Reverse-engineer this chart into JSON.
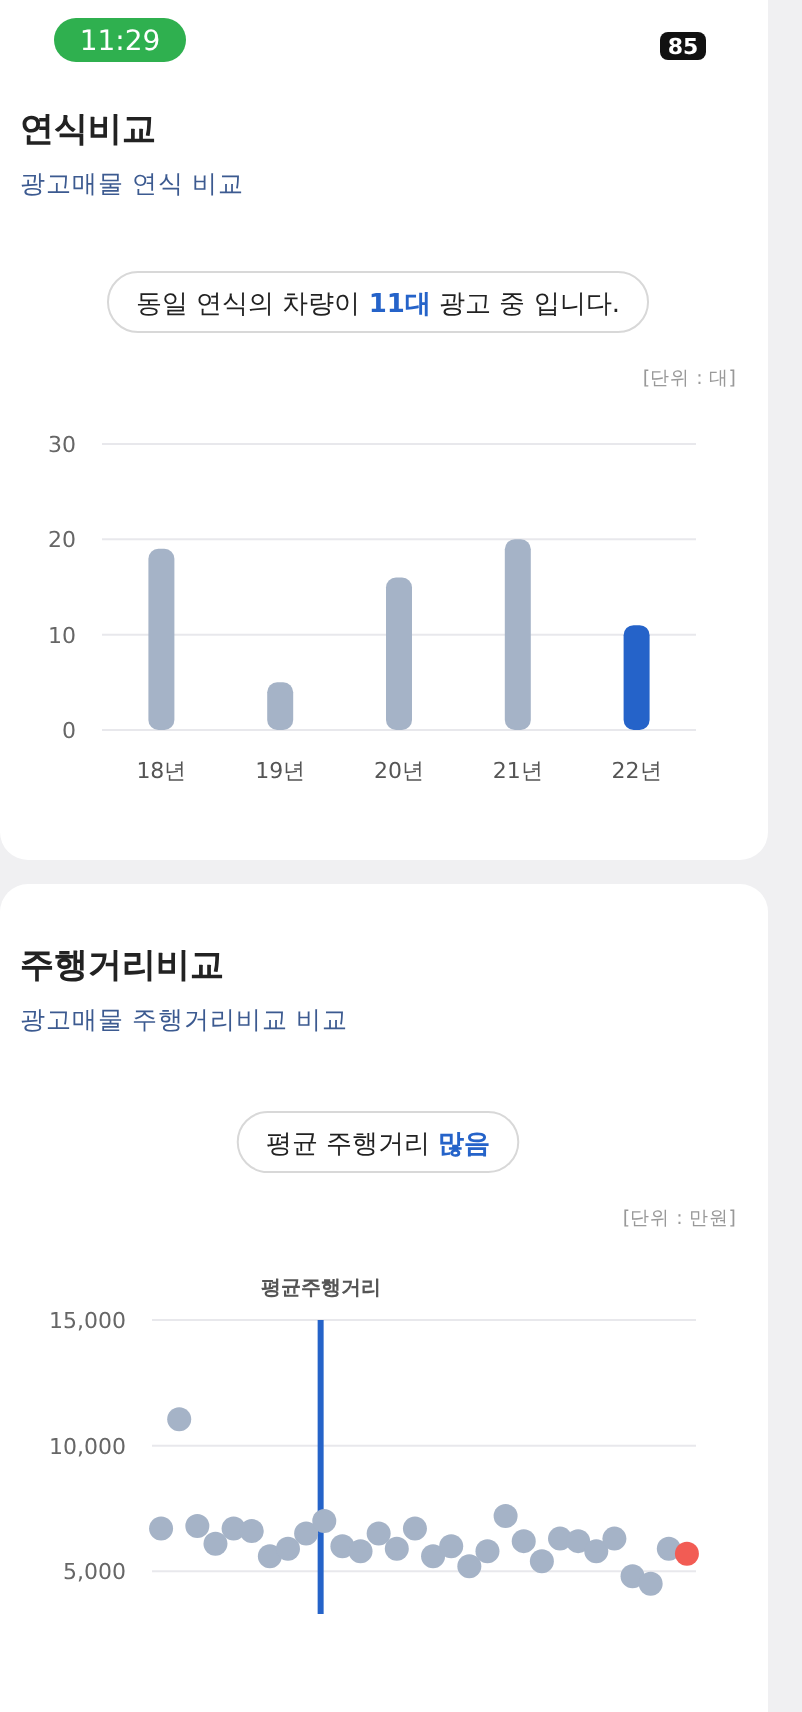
{
  "chart_data": [
    {
      "type": "bar",
      "title": "연식비교",
      "subtitle": "광고매물 연식 비교",
      "ylabel": "[단위 : 대]",
      "annotations": [
        "11:29",
        "85",
        "동일 연식의 차량이 **11대** 광고 중 입니다."
      ],
      "categories": [
        "18년",
        "19년",
        "20년",
        "21년",
        "22년"
      ],
      "values": [
        19,
        5,
        16,
        20,
        11
      ],
      "colors": [
        "#a5b3c7",
        "#a5b3c7",
        "#a5b3c7",
        "#a5b3c7",
        "#2563c9"
      ],
      "ylim": [
        0,
        30
      ],
      "yticks": [
        0,
        10,
        20,
        30
      ],
      "grid": "y"
    },
    {
      "type": "scatter",
      "title": "주행거리비교",
      "subtitle": "광고매물 주행거리비교 비교",
      "ylabel": "[단위 : 만원]",
      "annotations": [
        "평균 주행거리 **많음**",
        "평균주행거리"
      ],
      "categories": [
        null,
        null,
        null,
        null,
        null,
        null,
        null,
        null,
        null,
        null,
        null,
        null,
        null,
        null,
        null,
        null,
        null,
        null,
        null,
        null,
        null,
        null,
        null,
        null,
        null,
        null,
        null,
        null,
        null,
        null
      ],
      "values": [
        6700,
        11050,
        6800,
        6100,
        6700,
        6600,
        5600,
        5900,
        6500,
        7000,
        6000,
        5800,
        6500,
        5900,
        6700,
        5600,
        6000,
        5200,
        5800,
        7200,
        6200,
        5400,
        6300,
        6200,
        5800,
        6300,
        4800,
        4500,
        5900,
        5700
      ],
      "colors": [
        "#a5b3c7",
        "#a5b3c7",
        "#a5b3c7",
        "#a5b3c7",
        "#a5b3c7",
        "#a5b3c7",
        "#a5b3c7",
        "#a5b3c7",
        "#a5b3c7",
        "#a5b3c7",
        "#a5b3c7",
        "#a5b3c7",
        "#a5b3c7",
        "#a5b3c7",
        "#a5b3c7",
        "#a5b3c7",
        "#a5b3c7",
        "#a5b3c7",
        "#a5b3c7",
        "#a5b3c7",
        "#a5b3c7",
        "#a5b3c7",
        "#a5b3c7",
        "#a5b3c7",
        "#a5b3c7",
        "#a5b3c7",
        "#a5b3c7",
        "#a5b3c7",
        "#a5b3c7",
        "#f25c54"
      ],
      "marker": "circle",
      "ylim": [
        3300,
        15000
      ],
      "yticks": [
        {
          "value": 5000,
          "label": "5,000"
        },
        {
          "value": 10000,
          "label": "10,000"
        },
        {
          "value": 15000,
          "label": "15,000"
        }
      ],
      "tick_labels": "y",
      "grid": "y"
    }
  ]
}
